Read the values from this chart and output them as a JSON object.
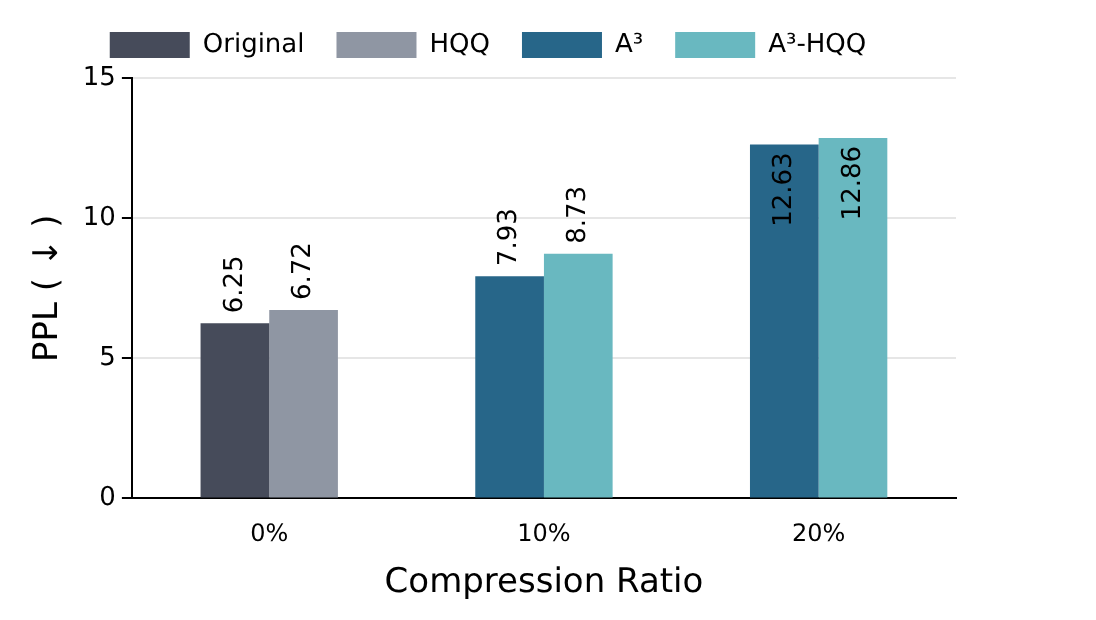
{
  "chart_data": {
    "type": "bar",
    "xlabel": "Compression Ratio",
    "ylabel": "PPL ( ↓ )",
    "categories": [
      "0%",
      "10%",
      "20%"
    ],
    "series": [
      {
        "name": "Original",
        "color": "#464b5a",
        "values": [
          6.25,
          null,
          null
        ]
      },
      {
        "name": "HQQ",
        "color": "#8f96a3",
        "values": [
          6.72,
          null,
          null
        ]
      },
      {
        "name": "A³",
        "color": "#276689",
        "values": [
          null,
          7.93,
          12.63
        ]
      },
      {
        "name": "A³-HQQ",
        "color": "#69b8c0",
        "values": [
          null,
          8.73,
          12.86
        ]
      }
    ],
    "ylim": [
      0,
      15
    ],
    "yticks": [
      0,
      5,
      10,
      15
    ],
    "grid": "y",
    "legend": "top",
    "data_labels": true
  }
}
